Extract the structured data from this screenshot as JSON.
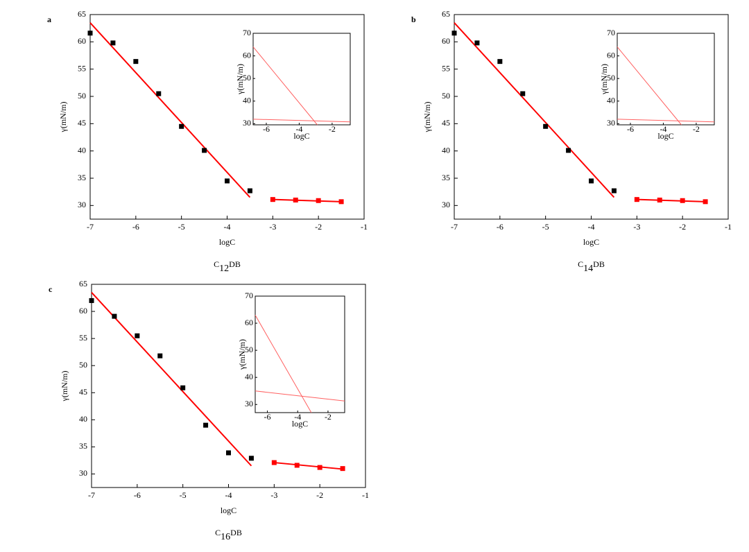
{
  "chart_data": [
    {
      "type": "scatter",
      "panel_label": "a",
      "caption": [
        "C",
        "12",
        "DB"
      ],
      "xlabel": "logC",
      "ylabel": "γ(mN/m)",
      "xlim": [
        -7,
        -1
      ],
      "ylim": [
        27.5,
        65
      ],
      "xticks": [
        -7,
        -6,
        -5,
        -4,
        -3,
        -2,
        -1
      ],
      "yticks": [
        30,
        35,
        40,
        45,
        50,
        55,
        60,
        65
      ],
      "series": [
        {
          "color": "#000000",
          "x": [
            -7,
            -6.5,
            -6,
            -5.5,
            -5,
            -4.5,
            -4,
            -3.5
          ],
          "values": [
            61.6,
            59.8,
            56.4,
            50.5,
            44.5,
            40.1,
            34.5,
            32.7
          ]
        },
        {
          "color": "#ff0000",
          "x": [
            -3,
            -2.5,
            -2,
            -1.5
          ],
          "values": [
            31.1,
            31.0,
            30.9,
            30.7
          ]
        }
      ],
      "fit_lines": [
        {
          "color": "#ff0000",
          "x": [
            -7,
            -3.5
          ],
          "values": [
            63.5,
            31.5
          ]
        },
        {
          "color": "#ff0000",
          "x": [
            -3,
            -1.5
          ],
          "values": [
            31.1,
            30.7
          ]
        }
      ],
      "inset": {
        "xlabel": "logC",
        "ylabel": "γ(mN/m)",
        "xlim": [
          -6.8,
          -0.9
        ],
        "ylim": [
          29.5,
          70
        ],
        "xticks": [
          -6,
          -4,
          -2
        ],
        "yticks": [
          30,
          40,
          50,
          60,
          70
        ],
        "lines": [
          {
            "color": "#ff6060",
            "x": [
              -6.8,
              -2.9
            ],
            "values": [
              64,
              29.5
            ]
          },
          {
            "color": "#ff6060",
            "x": [
              -6.8,
              -0.9
            ],
            "values": [
              32,
              30.8
            ]
          }
        ]
      }
    },
    {
      "type": "scatter",
      "panel_label": "b",
      "caption": [
        "C",
        "14",
        "DB"
      ],
      "xlabel": "logC",
      "ylabel": "γ(mN/m)",
      "xlim": [
        -7,
        -1
      ],
      "ylim": [
        27.5,
        65
      ],
      "xticks": [
        -7,
        -6,
        -5,
        -4,
        -3,
        -2,
        -1
      ],
      "yticks": [
        30,
        35,
        40,
        45,
        50,
        55,
        60,
        65
      ],
      "series": [
        {
          "color": "#000000",
          "x": [
            -7,
            -6.5,
            -6,
            -5.5,
            -5,
            -4.5,
            -4,
            -3.5
          ],
          "values": [
            61.6,
            59.8,
            56.4,
            50.5,
            44.5,
            40.1,
            34.5,
            32.7
          ]
        },
        {
          "color": "#ff0000",
          "x": [
            -3,
            -2.5,
            -2,
            -1.5
          ],
          "values": [
            31.1,
            31.0,
            30.9,
            30.7
          ]
        }
      ],
      "fit_lines": [
        {
          "color": "#ff0000",
          "x": [
            -7,
            -3.5
          ],
          "values": [
            63.5,
            31.5
          ]
        },
        {
          "color": "#ff0000",
          "x": [
            -3,
            -1.5
          ],
          "values": [
            31.1,
            30.7
          ]
        }
      ],
      "inset": {
        "xlabel": "logC",
        "ylabel": "γ(mN/m)",
        "xlim": [
          -6.8,
          -0.9
        ],
        "ylim": [
          29.5,
          70
        ],
        "xticks": [
          -6,
          -4,
          -2
        ],
        "yticks": [
          30,
          40,
          50,
          60,
          70
        ],
        "lines": [
          {
            "color": "#ff6060",
            "x": [
              -6.8,
              -2.9
            ],
            "values": [
              64,
              29.5
            ]
          },
          {
            "color": "#ff6060",
            "x": [
              -6.8,
              -0.9
            ],
            "values": [
              32,
              30.8
            ]
          }
        ]
      }
    },
    {
      "type": "scatter",
      "panel_label": "c",
      "caption": [
        "C",
        "16",
        "DB"
      ],
      "xlabel": "logC",
      "ylabel": "γ(mN/m)",
      "xlim": [
        -7,
        -1
      ],
      "ylim": [
        27.5,
        65
      ],
      "xticks": [
        -7,
        -6,
        -5,
        -4,
        -3,
        -2,
        -1
      ],
      "yticks": [
        30,
        35,
        40,
        45,
        50,
        55,
        60,
        65
      ],
      "series": [
        {
          "color": "#000000",
          "x": [
            -7,
            -6.5,
            -6,
            -5.5,
            -5,
            -4.5,
            -4,
            -3.5
          ],
          "values": [
            62.0,
            59.1,
            55.5,
            51.8,
            45.9,
            39.0,
            33.9,
            32.9
          ]
        },
        {
          "color": "#ff0000",
          "x": [
            -3,
            -2.5,
            -2,
            -1.5
          ],
          "values": [
            32.1,
            31.6,
            31.2,
            31.0
          ]
        }
      ],
      "fit_lines": [
        {
          "color": "#ff0000",
          "x": [
            -7,
            -3.5
          ],
          "values": [
            63.5,
            31.5
          ]
        },
        {
          "color": "#ff0000",
          "x": [
            -3,
            -1.5
          ],
          "values": [
            32.1,
            30.9
          ]
        }
      ],
      "inset": {
        "xlabel": "logC",
        "ylabel": "γ(mN/m)",
        "xlim": [
          -6.8,
          -0.9
        ],
        "ylim": [
          27,
          70
        ],
        "xticks": [
          -6,
          -4,
          -2
        ],
        "yticks": [
          30,
          40,
          50,
          60,
          70
        ],
        "lines": [
          {
            "color": "#ff6060",
            "x": [
              -6.8,
              -3.1
            ],
            "values": [
              63,
              27
            ]
          },
          {
            "color": "#ff6060",
            "x": [
              -6.8,
              -0.9
            ],
            "values": [
              35,
              31.3
            ]
          }
        ]
      }
    }
  ]
}
